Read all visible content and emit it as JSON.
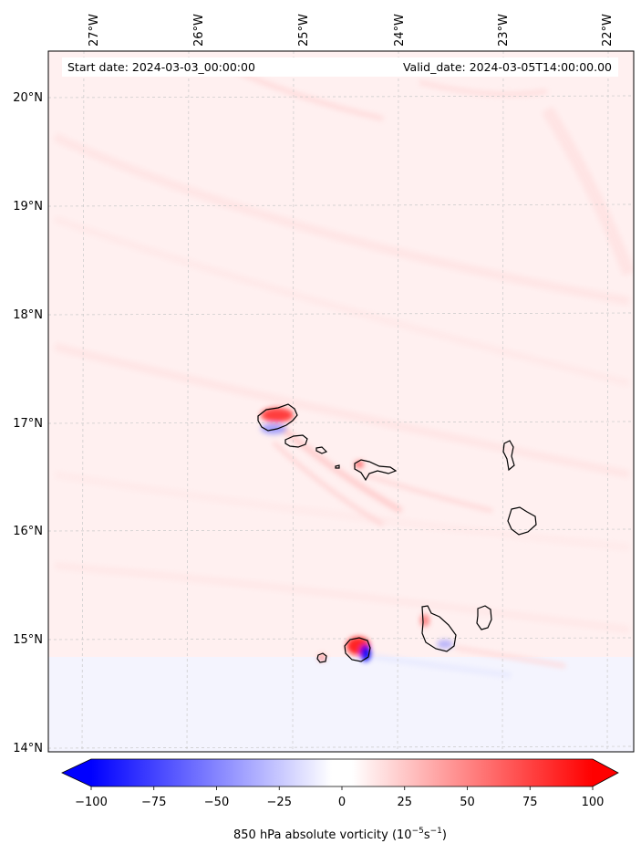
{
  "map": {
    "lon_labels": [
      "27°W",
      "26°W",
      "25°W",
      "24°W",
      "23°W",
      "22°W"
    ],
    "lat_labels": [
      "20°N",
      "19°N",
      "18°N",
      "17°N",
      "16°N",
      "15°N",
      "14°N"
    ],
    "start_date": "Start date: 2024-03-03_00:00:00",
    "valid_date": "Valid_date: 2024-03-05T14:00:00.00",
    "gridlines": true,
    "field_colors": {
      "positive": "#ff0000",
      "negative": "#0000ff",
      "zero": "#ffffff"
    }
  },
  "colorbar": {
    "min": -100,
    "max": 100,
    "extend": "both",
    "ticks": [
      "−100",
      "−75",
      "−50",
      "−25",
      "0",
      "25",
      "50",
      "75",
      "100"
    ],
    "label_prefix": "850 hPa absolute vorticity (10",
    "label_exp1": "−5",
    "label_mid": "s",
    "label_exp2": "−1",
    "label_suffix": ")"
  }
}
